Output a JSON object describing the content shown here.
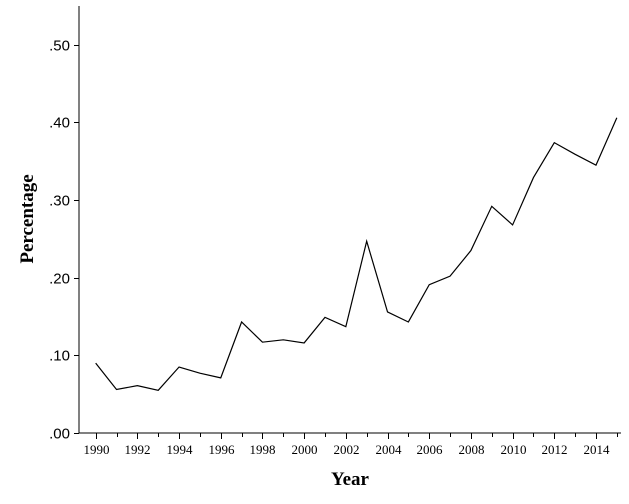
{
  "chart_data": {
    "type": "line",
    "title": "",
    "xlabel": "Year",
    "ylabel": "Percentage",
    "xlim": [
      1989.2,
      2015.2
    ],
    "ylim": [
      0,
      0.55
    ],
    "y_ticks": [
      0.0,
      0.1,
      0.2,
      0.3,
      0.4,
      0.5
    ],
    "y_tick_labels": [
      ".00",
      ".10",
      ".20",
      ".30",
      ".40",
      ".50"
    ],
    "x_ticks_major": [
      1990,
      1992,
      1994,
      1996,
      1998,
      2000,
      2002,
      2004,
      2006,
      2008,
      2010,
      2012,
      2014
    ],
    "x_tick_labels": [
      "1990",
      "1992",
      "1994",
      "1996",
      "1998",
      "2000",
      "2002",
      "2004",
      "2006",
      "2008",
      "2010",
      "2012",
      "2014"
    ],
    "x_ticks_minor": [
      1991,
      1993,
      1995,
      1997,
      1999,
      2001,
      2003,
      2005,
      2007,
      2009,
      2011,
      2013,
      2015
    ],
    "grid": false,
    "legend": "none",
    "colors": {
      "line": "#000000",
      "axis": "#000000",
      "background": "#ffffff"
    },
    "series": [
      {
        "x": [
          1990,
          1991,
          1992,
          1993,
          1994,
          1995,
          1996,
          1997,
          1998,
          1999,
          2000,
          2001,
          2002,
          2003,
          2004,
          2005,
          2006,
          2007,
          2008,
          2009,
          2010,
          2011,
          2012,
          2013,
          2014,
          2015
        ],
        "values": [
          0.09,
          0.056,
          0.061,
          0.055,
          0.085,
          0.077,
          0.071,
          0.143,
          0.117,
          0.12,
          0.116,
          0.149,
          0.137,
          0.247,
          0.156,
          0.143,
          0.191,
          0.202,
          0.235,
          0.292,
          0.268,
          0.329,
          0.374,
          0.359,
          0.345,
          0.406
        ]
      }
    ]
  }
}
